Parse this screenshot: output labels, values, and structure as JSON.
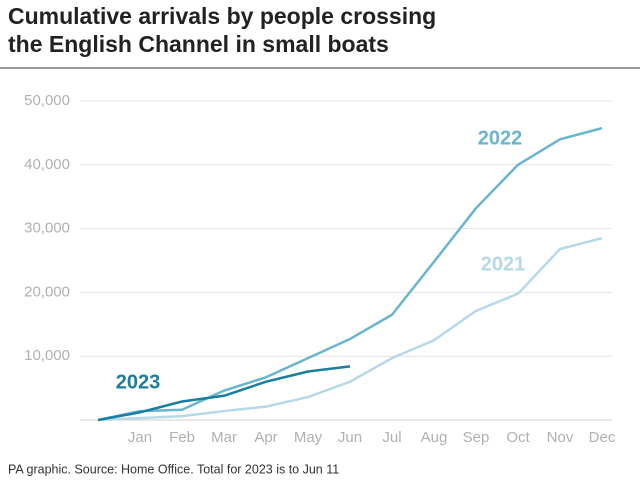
{
  "chart_data": {
    "type": "line",
    "title": [
      "Cumulative arrivals by people crossing",
      "the English Channel in small boats"
    ],
    "source": "PA graphic. Source: Home Office. Total for 2023 is to Jun 11",
    "categories": [
      null,
      "Jan",
      "Feb",
      "Mar",
      "Apr",
      "May",
      "Jun",
      "Jul",
      "Aug",
      "Sep",
      "Oct",
      "Nov",
      "Dec"
    ],
    "series": [
      {
        "name": "2022",
        "color": "#6ab4cf",
        "values": [
          0,
          1400,
          1600,
          4600,
          6700,
          9700,
          12700,
          16500,
          24800,
          33200,
          40000,
          44000,
          45750
        ]
      },
      {
        "name": "2021",
        "color": "#b5d9e8",
        "values": [
          0,
          300,
          600,
          1400,
          2100,
          3600,
          6000,
          9700,
          12500,
          17100,
          19800,
          26800,
          28500
        ]
      },
      {
        "name": "2023",
        "color": "#1a7ea0",
        "values": [
          0,
          1200,
          2900,
          3800,
          6000,
          7600,
          8400,
          null,
          null,
          null,
          null,
          null,
          null
        ]
      }
    ],
    "ylim": [
      0,
      50000
    ],
    "yticks": [
      {
        "value": 10000,
        "label": "10,000"
      },
      {
        "value": 20000,
        "label": "20,000"
      },
      {
        "value": 30000,
        "label": "30,000"
      },
      {
        "value": 40000,
        "label": "40,000"
      },
      {
        "value": 50000,
        "label": "50,000"
      }
    ],
    "grid": true
  }
}
